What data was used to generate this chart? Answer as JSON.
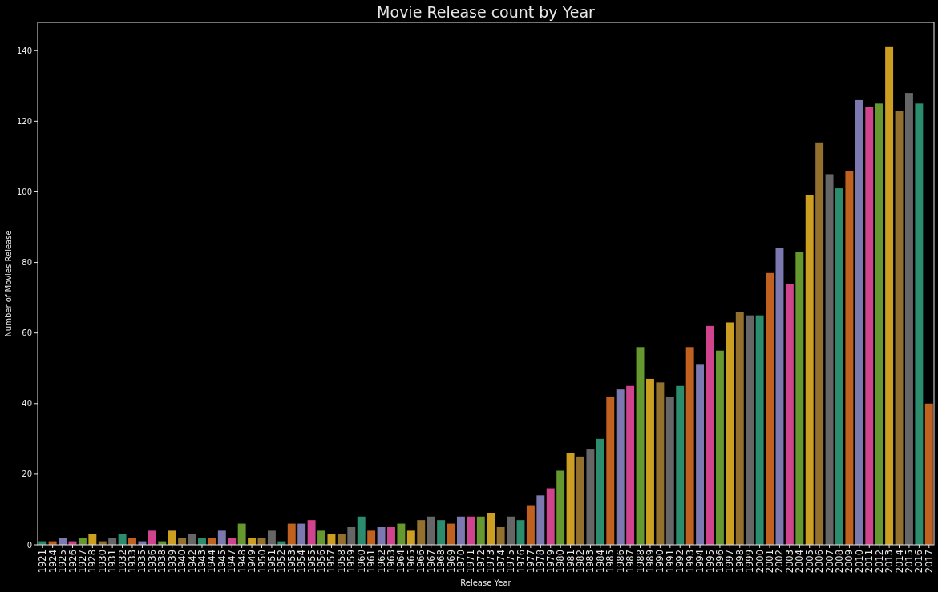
{
  "chart_data": {
    "type": "bar",
    "title": "Movie Release count by Year",
    "xlabel": "Release Year",
    "ylabel": "Number of Movies Release",
    "categories": [
      "1921",
      "1924",
      "1925",
      "1926",
      "1927",
      "1928",
      "1930",
      "1931",
      "1932",
      "1933",
      "1935",
      "1936",
      "1938",
      "1939",
      "1940",
      "1942",
      "1943",
      "1944",
      "1945",
      "1947",
      "1948",
      "1949",
      "1950",
      "1951",
      "1952",
      "1953",
      "1954",
      "1955",
      "1956",
      "1957",
      "1958",
      "1959",
      "1960",
      "1961",
      "1962",
      "1963",
      "1964",
      "1965",
      "1966",
      "1967",
      "1968",
      "1969",
      "1970",
      "1971",
      "1972",
      "1973",
      "1974",
      "1975",
      "1976",
      "1977",
      "1978",
      "1979",
      "1980",
      "1981",
      "1982",
      "1983",
      "1984",
      "1985",
      "1986",
      "1987",
      "1988",
      "1989",
      "1990",
      "1991",
      "1992",
      "1993",
      "1994",
      "1995",
      "1996",
      "1997",
      "1998",
      "1999",
      "2000",
      "2001",
      "2002",
      "2003",
      "2004",
      "2005",
      "2006",
      "2007",
      "2008",
      "2009",
      "2010",
      "2011",
      "2012",
      "2013",
      "2014",
      "2015",
      "2016",
      "2017"
    ],
    "values": [
      1,
      1,
      2,
      1,
      2,
      3,
      1,
      2,
      3,
      2,
      1,
      4,
      1,
      4,
      2,
      3,
      2,
      2,
      4,
      2,
      6,
      2,
      2,
      4,
      1,
      6,
      6,
      7,
      4,
      3,
      3,
      5,
      8,
      4,
      5,
      5,
      6,
      4,
      7,
      8,
      7,
      6,
      8,
      8,
      8,
      9,
      5,
      8,
      7,
      11,
      14,
      16,
      21,
      26,
      25,
      27,
      30,
      42,
      44,
      45,
      56,
      47,
      46,
      42,
      45,
      56,
      51,
      62,
      55,
      63,
      66,
      65,
      65,
      77,
      84,
      74,
      83,
      99,
      114,
      105,
      101,
      106,
      126,
      124,
      125,
      141,
      123,
      128,
      125,
      40
    ],
    "colors": [
      "#2b8c6e",
      "#c1611f",
      "#7c78b0",
      "#d0448e",
      "#65982f",
      "#cc9f22",
      "#94702f",
      "#666666",
      "#2b8c6e",
      "#c1611f",
      "#7c78b0",
      "#d0448e",
      "#65982f",
      "#cc9f22",
      "#94702f",
      "#666666",
      "#2b8c6e",
      "#c1611f",
      "#7c78b0",
      "#d0448e",
      "#65982f",
      "#cc9f22",
      "#94702f",
      "#666666",
      "#2b8c6e",
      "#c1611f",
      "#7c78b0",
      "#d0448e",
      "#65982f",
      "#cc9f22",
      "#94702f",
      "#666666",
      "#2b8c6e",
      "#c1611f",
      "#7c78b0",
      "#d0448e",
      "#65982f",
      "#cc9f22",
      "#94702f",
      "#666666",
      "#2b8c6e",
      "#c1611f",
      "#7c78b0",
      "#d0448e",
      "#65982f",
      "#cc9f22",
      "#94702f",
      "#666666",
      "#2b8c6e",
      "#c1611f",
      "#7c78b0",
      "#d0448e",
      "#65982f",
      "#cc9f22",
      "#94702f",
      "#666666",
      "#2b8c6e",
      "#c1611f",
      "#7c78b0",
      "#d0448e",
      "#65982f",
      "#cc9f22",
      "#94702f",
      "#666666",
      "#2b8c6e",
      "#c1611f",
      "#7c78b0",
      "#d0448e",
      "#65982f",
      "#cc9f22",
      "#94702f",
      "#666666",
      "#2b8c6e",
      "#c1611f",
      "#7c78b0",
      "#d0448e",
      "#65982f",
      "#cc9f22",
      "#94702f",
      "#666666",
      "#2b8c6e",
      "#c1611f",
      "#7c78b0",
      "#d0448e",
      "#65982f",
      "#cc9f22",
      "#94702f",
      "#666666",
      "#2b8c6e",
      "#c1611f"
    ],
    "ylim": [
      0,
      148
    ],
    "yticks": [
      0,
      20,
      40,
      60,
      80,
      100,
      120,
      140
    ]
  }
}
